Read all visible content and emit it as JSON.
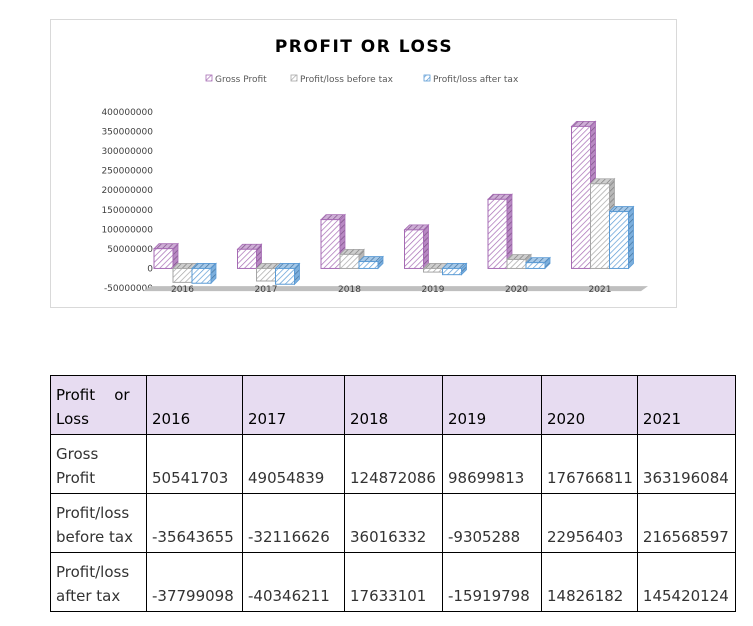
{
  "chart_data": {
    "type": "bar",
    "subtype": "3d-clustered-column",
    "title": "PROFIT OR LOSS",
    "categories": [
      "2016",
      "2017",
      "2018",
      "2019",
      "2020",
      "2021"
    ],
    "series": [
      {
        "name": "Gross Profit",
        "color": "#a66bb4",
        "values": [
          50541703,
          49054839,
          124872086,
          98699813,
          176766811,
          363196084
        ]
      },
      {
        "name": "Profit/loss before tax",
        "color": "#a6a6a6",
        "values": [
          -35643655,
          -32116626,
          36016332,
          -9305288,
          22956403,
          216568597
        ]
      },
      {
        "name": "Profit/loss after tax",
        "color": "#5b9bd5",
        "values": [
          -37799098,
          -40346211,
          17633101,
          -15919798,
          14826182,
          145420124
        ]
      }
    ],
    "ylim": [
      -50000000,
      400000000
    ],
    "yticks": [
      "400000000",
      "350000000",
      "300000000",
      "250000000",
      "200000000",
      "150000000",
      "100000000",
      "50000000",
      "0",
      "-50000000"
    ],
    "ytick_values": [
      400000000,
      350000000,
      300000000,
      250000000,
      200000000,
      150000000,
      100000000,
      50000000,
      0,
      -50000000
    ],
    "legend_position": "top",
    "grid": false,
    "xlabel": "",
    "ylabel": ""
  },
  "table": {
    "corner_label_line1": "Profit    or",
    "corner_label_line2": "Loss",
    "years": [
      "2016",
      "2017",
      "2018",
      "2019",
      "2020",
      "2021"
    ],
    "rows": [
      {
        "label_line1": "Gross",
        "label_line2": "Profit",
        "values": [
          "50541703",
          "49054839",
          "124872086",
          "98699813",
          "176766811",
          "363196084"
        ]
      },
      {
        "label_line1": "Profit/loss",
        "label_line2": "before tax",
        "values": [
          "-35643655",
          "-32116626",
          "36016332",
          "-9305288",
          "22956403",
          "216568597"
        ]
      },
      {
        "label_line1": "Profit/loss",
        "label_line2": "after tax",
        "values": [
          "-37799098",
          "-40346211",
          "17633101",
          "-15919798",
          "14826182",
          "145420124"
        ]
      }
    ],
    "header_bg": "#e7dcf1"
  }
}
